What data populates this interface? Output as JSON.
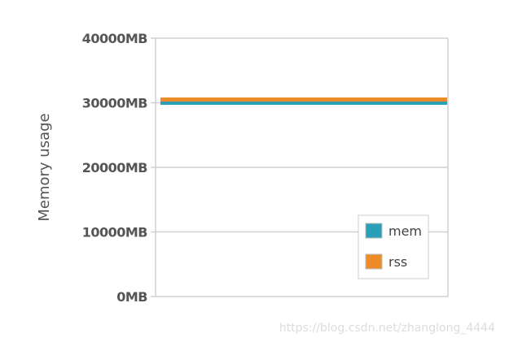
{
  "chart_data": {
    "type": "line",
    "title": "",
    "xlabel": "",
    "ylabel": "Memory usage",
    "ylim": [
      0,
      40000
    ],
    "y_ticks": [
      0,
      10000,
      20000,
      30000,
      40000
    ],
    "y_tick_labels": [
      "0MB",
      "10000MB",
      "20000MB",
      "30000MB",
      "40000MB"
    ],
    "grid": true,
    "legend_position": "bottom-right",
    "series": [
      {
        "name": "mem",
        "color": "#2aa0b8",
        "x": [
          0,
          1
        ],
        "values": [
          30000,
          30000
        ]
      },
      {
        "name": "rss",
        "color": "#ee8c2a",
        "x": [
          0,
          1
        ],
        "values": [
          30500,
          30500
        ]
      }
    ]
  },
  "watermark": "https://blog.csdn.net/zhanglong_4444"
}
